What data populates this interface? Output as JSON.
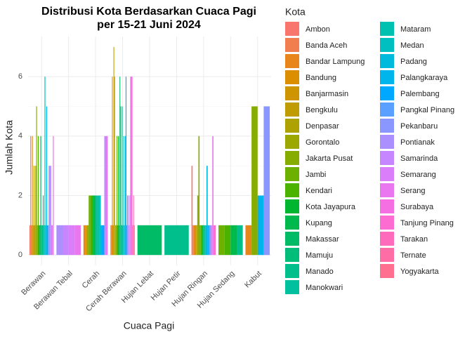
{
  "chart_data": {
    "type": "bar",
    "position": "dodge",
    "title": [
      "Distribusi Kota Berdasarkan Cuaca Pagi",
      "per 15-21 Juni 2024"
    ],
    "x_label": "Cuaca Pagi",
    "y_label": "Jumlah Kota",
    "legend_title": "Kota",
    "categories": [
      "Berawan",
      "Berawan Tebal",
      "Cerah",
      "Cerah Berawan",
      "Hujan Lebat",
      "Hujan Petir",
      "Hujan Ringan",
      "Hujan Sedang",
      "Kabut"
    ],
    "ylim": [
      -0.35,
      7.35
    ],
    "yticks": [
      0,
      2,
      4,
      6
    ],
    "grid": true,
    "legend": "right",
    "series": [
      {
        "name": "Ambon",
        "color": "#F8766D",
        "values": [
          1,
          null,
          null,
          null,
          null,
          null,
          3,
          null,
          null
        ]
      },
      {
        "name": "Banda Aceh",
        "color": "#F17E4F",
        "values": [
          4,
          null,
          null,
          1,
          null,
          null,
          1,
          null,
          null
        ]
      },
      {
        "name": "Bandar Lampung",
        "color": "#E7861B",
        "values": [
          1,
          null,
          1,
          1,
          null,
          null,
          1,
          null,
          1
        ]
      },
      {
        "name": "Bandung",
        "color": "#DB8E00",
        "values": [
          4,
          null,
          1,
          6,
          null,
          null,
          null,
          null,
          null
        ]
      },
      {
        "name": "Banjarmasin",
        "color": "#CE9500",
        "values": [
          1,
          null,
          null,
          1,
          null,
          null,
          1,
          null,
          null
        ]
      },
      {
        "name": "Bengkulu",
        "color": "#BF9C00",
        "values": [
          3,
          null,
          null,
          7,
          null,
          null,
          null,
          null,
          null
        ]
      },
      {
        "name": "Denpasar",
        "color": "#AEA200",
        "values": [
          1,
          null,
          null,
          6,
          null,
          null,
          1,
          null,
          null
        ]
      },
      {
        "name": "Gorontalo",
        "color": "#9CA700",
        "values": [
          3,
          null,
          1,
          1,
          null,
          null,
          2,
          null,
          null
        ]
      },
      {
        "name": "Jakarta Pusat",
        "color": "#87AC00",
        "values": [
          5,
          null,
          null,
          1,
          null,
          null,
          4,
          null,
          5
        ]
      },
      {
        "name": "Jambi",
        "color": "#6EB000",
        "values": [
          1,
          null,
          2,
          4,
          null,
          null,
          1,
          1,
          null
        ]
      },
      {
        "name": "Kendari",
        "color": "#4BB300",
        "values": [
          4,
          null,
          2,
          1,
          null,
          null,
          1,
          1,
          null
        ]
      },
      {
        "name": "Kota Jayapura",
        "color": "#00B530",
        "values": [
          1,
          null,
          2,
          4,
          null,
          null,
          null,
          null,
          null
        ]
      },
      {
        "name": "Kupang",
        "color": "#00B94D",
        "values": [
          1,
          null,
          2,
          1,
          null,
          null,
          1,
          1,
          null
        ]
      },
      {
        "name": "Makassar",
        "color": "#00BB65",
        "values": [
          4,
          null,
          null,
          6,
          1,
          null,
          null,
          null,
          null
        ]
      },
      {
        "name": "Mamuju",
        "color": "#00BD7A",
        "values": [
          1,
          null,
          null,
          5,
          null,
          null,
          1,
          null,
          null
        ]
      },
      {
        "name": "Manado",
        "color": "#00BF8D",
        "values": [
          1,
          null,
          2,
          1,
          null,
          1,
          null,
          1,
          null
        ]
      },
      {
        "name": "Manokwari",
        "color": "#00C09F",
        "values": [
          2,
          null,
          null,
          5,
          null,
          null,
          1,
          null,
          null
        ]
      },
      {
        "name": "Mataram",
        "color": "#00C0B0",
        "values": [
          1,
          null,
          2,
          1,
          null,
          null,
          null,
          null,
          null
        ]
      },
      {
        "name": "Medan",
        "color": "#00BFC0",
        "values": [
          6,
          null,
          2,
          4,
          null,
          null,
          1,
          null,
          null
        ]
      },
      {
        "name": "Padang",
        "color": "#00BADE",
        "values": [
          1,
          null,
          null,
          1,
          null,
          null,
          3,
          null,
          null
        ]
      },
      {
        "name": "Palangkaraya",
        "color": "#00B5EB",
        "values": [
          5,
          null,
          1,
          4,
          null,
          null,
          null,
          null,
          2
        ]
      },
      {
        "name": "Palembang",
        "color": "#00A8FF",
        "values": [
          1,
          null,
          1,
          6,
          null,
          null,
          1,
          null,
          null
        ]
      },
      {
        "name": "Pangkal Pinang",
        "color": "#5AA0FF",
        "values": [
          1,
          null,
          null,
          1,
          null,
          null,
          1,
          null,
          null
        ]
      },
      {
        "name": "Pekanbaru",
        "color": "#8A97FF",
        "values": [
          3,
          null,
          null,
          2,
          null,
          null,
          null,
          null,
          5
        ]
      },
      {
        "name": "Pontianak",
        "color": "#AB8FFF",
        "values": [
          3,
          1,
          null,
          2,
          null,
          null,
          1,
          null,
          null
        ]
      },
      {
        "name": "Samarinda",
        "color": "#C586FF",
        "values": [
          3,
          1,
          4,
          1,
          null,
          null,
          null,
          null,
          null
        ]
      },
      {
        "name": "Semarang",
        "color": "#DA7EFA",
        "values": [
          1,
          1,
          null,
          2,
          null,
          null,
          1,
          null,
          null
        ]
      },
      {
        "name": "Serang",
        "color": "#EA76F0",
        "values": [
          1,
          1,
          4,
          6,
          null,
          null,
          4,
          null,
          null
        ]
      },
      {
        "name": "Surabaya",
        "color": "#F66FE2",
        "values": [
          4,
          null,
          null,
          6,
          null,
          null,
          1,
          null,
          null
        ]
      },
      {
        "name": "Tanjung Pinang",
        "color": "#FD6CD0",
        "values": [
          null,
          null,
          null,
          6,
          null,
          null,
          null,
          null,
          null
        ]
      },
      {
        "name": "Tarakan",
        "color": "#FF6BBC",
        "values": [
          null,
          null,
          null,
          1,
          null,
          null,
          1,
          null,
          null
        ]
      },
      {
        "name": "Ternate",
        "color": "#FF6DA6",
        "values": [
          null,
          null,
          null,
          2,
          null,
          null,
          null,
          null,
          null
        ]
      },
      {
        "name": "Yogyakarta",
        "color": "#FF6F8F",
        "values": [
          null,
          null,
          null,
          1,
          null,
          null,
          null,
          null,
          null
        ]
      }
    ]
  }
}
